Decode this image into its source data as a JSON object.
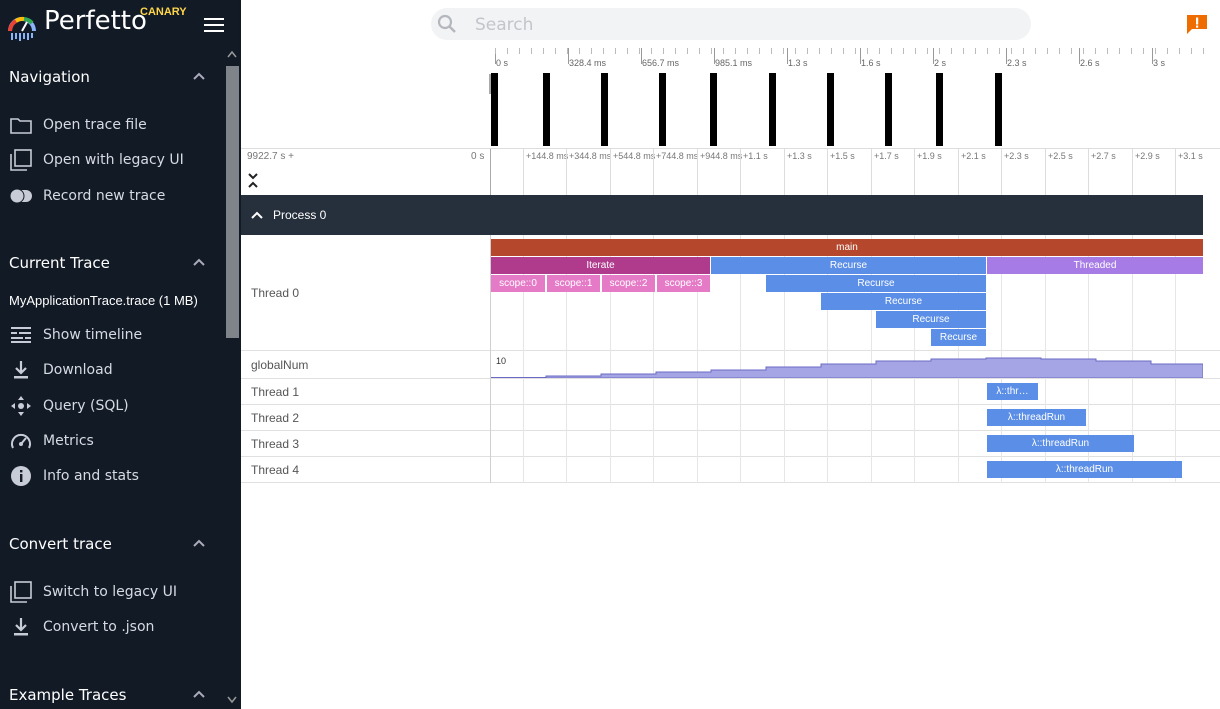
{
  "app": {
    "name": "Perfetto",
    "badge": "CANARY"
  },
  "search": {
    "placeholder": "Search"
  },
  "sidebar": {
    "navigation": {
      "title": "Navigation",
      "items": [
        {
          "label": "Open trace file",
          "icon": "folder-icon"
        },
        {
          "label": "Open with legacy UI",
          "icon": "filter-none-icon"
        },
        {
          "label": "Record new trace",
          "icon": "toggle-icon"
        }
      ]
    },
    "current_trace": {
      "title": "Current Trace",
      "trace_name": "MyApplicationTrace.trace (1 MB)",
      "items": [
        {
          "label": "Show timeline",
          "icon": "timeline-icon"
        },
        {
          "label": "Download",
          "icon": "download-icon"
        },
        {
          "label": "Query (SQL)",
          "icon": "query-icon"
        },
        {
          "label": "Metrics",
          "icon": "speedometer-icon"
        },
        {
          "label": "Info and stats",
          "icon": "info-icon"
        }
      ]
    },
    "convert_trace": {
      "title": "Convert trace",
      "items": [
        {
          "label": "Switch to legacy UI",
          "icon": "filter-none-icon"
        },
        {
          "label": "Convert to .json",
          "icon": "download-icon"
        }
      ]
    },
    "example_traces": {
      "title": "Example Traces"
    }
  },
  "overview": {
    "ticks": [
      "0 s",
      "328.4 ms",
      "656.7 ms",
      "985.1 ms",
      "1.3 s",
      "1.6 s",
      "2 s",
      "2.3 s",
      "2.6 s",
      "3 s"
    ]
  },
  "ruler": {
    "offset_label": "9922.7 s +",
    "zero_label": "0 s",
    "ticks": [
      "+144.8 ms",
      "+344.8 ms",
      "+544.8 ms",
      "+744.8 ms",
      "+944.8 ms",
      "+1.1 s",
      "+1.3 s",
      "+1.5 s",
      "+1.7 s",
      "+1.9 s",
      "+2.1 s",
      "+2.3 s",
      "+2.5 s",
      "+2.7 s",
      "+2.9 s",
      "+3.1 s"
    ]
  },
  "process": {
    "label": "Process 0"
  },
  "tracks": {
    "thread0": {
      "name": "Thread 0",
      "slices": {
        "main": "main",
        "iterate": "Iterate",
        "recurse": "Recurse",
        "threaded": "Threaded",
        "scopes": [
          "scope::0",
          "scope::1",
          "scope::2",
          "scope::3"
        ],
        "recurse_levels": [
          "Recurse",
          "Recurse",
          "Recurse",
          "Recurse"
        ]
      }
    },
    "global_num": {
      "name": "globalNum",
      "max_label": "10"
    },
    "thread1": {
      "name": "Thread 1",
      "slice": "λ::thr…"
    },
    "thread2": {
      "name": "Thread 2",
      "slice": "λ::threadRun"
    },
    "thread3": {
      "name": "Thread 3",
      "slice": "λ::threadRun"
    },
    "thread4": {
      "name": "Thread 4",
      "slice": "λ::threadRun"
    }
  },
  "colors": {
    "main": "#b5472c",
    "iterate": "#b03a8c",
    "scope": "#e57bc7",
    "recurse": "#5b8ee6",
    "threaded": "#a67be6",
    "counter": "#9d9ee0"
  }
}
